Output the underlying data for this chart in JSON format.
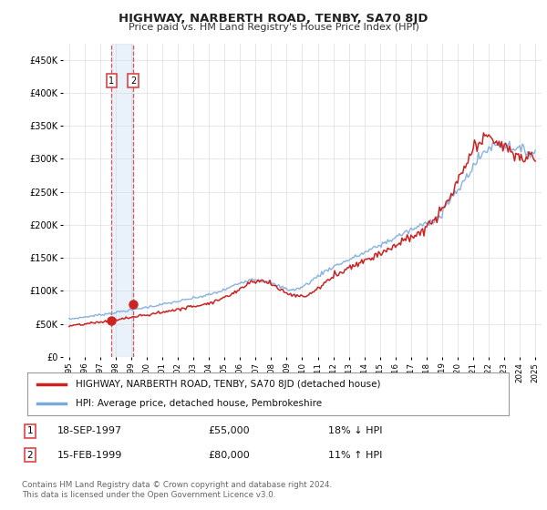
{
  "title": "HIGHWAY, NARBERTH ROAD, TENBY, SA70 8JD",
  "subtitle": "Price paid vs. HM Land Registry's House Price Index (HPI)",
  "ylim": [
    0,
    475000
  ],
  "yticks": [
    0,
    50000,
    100000,
    150000,
    200000,
    250000,
    300000,
    350000,
    400000,
    450000
  ],
  "red_line_color": "#cc2222",
  "blue_line_color": "#7aaadd",
  "marker_color": "#cc2222",
  "grid_color": "#dddddd",
  "vline_color": "#dd4444",
  "shade_color": "#aaccee",
  "background_color": "#ffffff",
  "legend_label_red": "HIGHWAY, NARBERTH ROAD, TENBY, SA70 8JD (detached house)",
  "legend_label_blue": "HPI: Average price, detached house, Pembrokeshire",
  "transaction1_date": "18-SEP-1997",
  "transaction1_price": "£55,000",
  "transaction1_hpi": "18% ↓ HPI",
  "transaction1_year": 1997.72,
  "transaction1_value": 55000,
  "transaction2_date": "15-FEB-1999",
  "transaction2_price": "£80,000",
  "transaction2_hpi": "11% ↑ HPI",
  "transaction2_year": 1999.12,
  "transaction2_value": 80000,
  "footer": "Contains HM Land Registry data © Crown copyright and database right 2024.\nThis data is licensed under the Open Government Licence v3.0."
}
